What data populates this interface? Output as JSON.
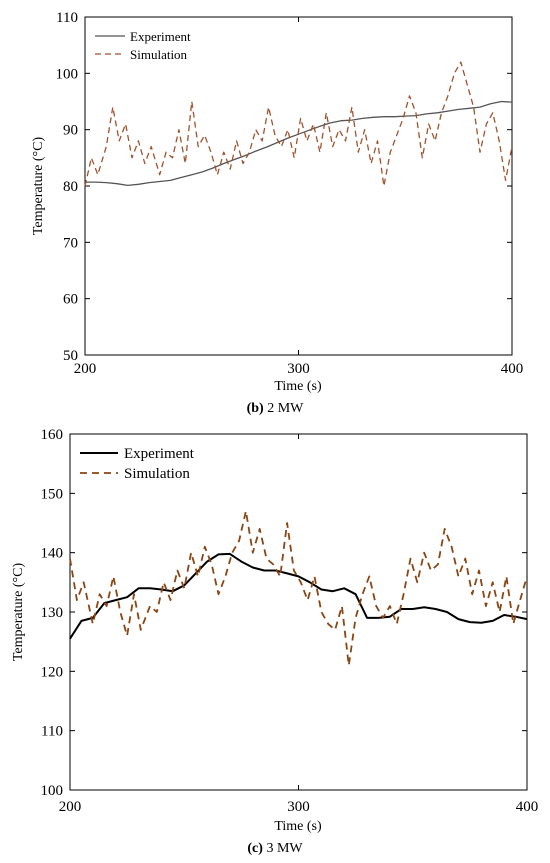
{
  "chart_data": [
    {
      "type": "line",
      "caption_label": "(b)",
      "caption_text": " 2 MW",
      "xlabel": "Time (s)",
      "ylabel": "Temperature (°C)",
      "xlim": [
        200,
        400
      ],
      "ylim": [
        50,
        110
      ],
      "xticks": [
        200,
        300,
        400
      ],
      "yticks": [
        50,
        60,
        70,
        80,
        90,
        100,
        110
      ],
      "legend_position": "top-left",
      "series": [
        {
          "name": "Experiment",
          "color": "#555555",
          "style": "solid",
          "x": [
            200,
            205,
            210,
            215,
            220,
            225,
            230,
            235,
            240,
            245,
            250,
            255,
            260,
            265,
            270,
            275,
            280,
            285,
            290,
            295,
            300,
            305,
            310,
            315,
            320,
            325,
            330,
            335,
            340,
            345,
            350,
            355,
            360,
            365,
            370,
            375,
            380,
            385,
            390,
            395,
            400
          ],
          "y": [
            80.7,
            80.7,
            80.6,
            80.4,
            80.1,
            80.3,
            80.6,
            80.8,
            81.0,
            81.5,
            82.0,
            82.5,
            83.2,
            84.0,
            84.7,
            85.4,
            86.2,
            86.9,
            87.7,
            88.5,
            89.2,
            89.9,
            90.6,
            91.2,
            91.6,
            91.7,
            92.0,
            92.2,
            92.3,
            92.3,
            92.4,
            92.5,
            92.8,
            93.0,
            93.3,
            93.6,
            93.8,
            94.0,
            94.6,
            95.0,
            94.9
          ]
        },
        {
          "name": "Simulation",
          "color": "#a0522d",
          "style": "dashed",
          "x": [
            200,
            203,
            206,
            210,
            213,
            216,
            219,
            222,
            225,
            228,
            231,
            235,
            238,
            241,
            244,
            247,
            250,
            253,
            256,
            259,
            262,
            265,
            268,
            271,
            274,
            277,
            280,
            283,
            286,
            289,
            292,
            295,
            298,
            301,
            304,
            307,
            310,
            313,
            316,
            319,
            322,
            325,
            328,
            331,
            334,
            337,
            340,
            343,
            346,
            349,
            352,
            355,
            358,
            361,
            364,
            367,
            370,
            373,
            376,
            379,
            382,
            385,
            388,
            391,
            394,
            397,
            400
          ],
          "y": [
            80.0,
            85.0,
            82.0,
            87.0,
            94.0,
            88.0,
            91.0,
            85.0,
            88.0,
            84.0,
            87.0,
            82.0,
            86.0,
            85.0,
            90.0,
            84.0,
            95.0,
            87.0,
            89.0,
            86.0,
            82.0,
            86.0,
            83.0,
            88.0,
            84.0,
            86.0,
            90.0,
            88.0,
            94.0,
            89.0,
            87.0,
            90.0,
            85.0,
            92.0,
            88.0,
            91.0,
            86.0,
            93.0,
            87.0,
            90.0,
            88.0,
            94.0,
            86.0,
            90.0,
            84.0,
            88.0,
            80.0,
            86.0,
            89.0,
            92.0,
            96.0,
            93.0,
            85.0,
            91.0,
            88.0,
            93.0,
            96.0,
            100.0,
            102.0,
            98.0,
            94.0,
            86.0,
            91.0,
            93.0,
            88.0,
            81.0,
            87.0
          ]
        }
      ]
    },
    {
      "type": "line",
      "caption_label": "(c)",
      "caption_text": " 3 MW",
      "xlabel": "Time (s)",
      "ylabel": "Temperature (°C)",
      "xlim": [
        200,
        400
      ],
      "ylim": [
        100,
        160
      ],
      "xticks": [
        200,
        300,
        400
      ],
      "yticks": [
        100,
        110,
        120,
        130,
        140,
        150,
        160
      ],
      "legend_position": "top-left",
      "series": [
        {
          "name": "Experiment",
          "color": "#000000",
          "style": "solid",
          "x": [
            200,
            205,
            210,
            215,
            220,
            225,
            230,
            235,
            240,
            245,
            250,
            255,
            260,
            265,
            270,
            275,
            280,
            285,
            290,
            295,
            300,
            305,
            310,
            315,
            320,
            325,
            330,
            335,
            340,
            345,
            350,
            355,
            360,
            365,
            370,
            375,
            380,
            385,
            390,
            395,
            400
          ],
          "y": [
            125.5,
            128.5,
            129.0,
            131.5,
            132.0,
            132.5,
            134.0,
            134.0,
            133.8,
            133.5,
            134.5,
            136.5,
            138.5,
            139.7,
            139.8,
            138.5,
            137.5,
            137.0,
            137.0,
            136.5,
            136.0,
            135.0,
            133.8,
            133.5,
            134.0,
            133.0,
            129.0,
            129.0,
            129.2,
            130.5,
            130.5,
            130.8,
            130.5,
            130.0,
            128.8,
            128.3,
            128.2,
            128.5,
            129.5,
            129.2,
            128.8
          ]
        },
        {
          "name": "Simulation",
          "color": "#8b4513",
          "style": "dashed",
          "x": [
            200,
            203,
            206,
            210,
            213,
            216,
            219,
            222,
            225,
            228,
            231,
            235,
            238,
            241,
            244,
            247,
            250,
            253,
            256,
            259,
            262,
            265,
            268,
            271,
            274,
            277,
            280,
            283,
            286,
            289,
            292,
            295,
            298,
            301,
            304,
            307,
            310,
            313,
            316,
            319,
            322,
            325,
            328,
            331,
            334,
            337,
            340,
            343,
            346,
            349,
            352,
            355,
            358,
            361,
            364,
            367,
            370,
            373,
            376,
            379,
            382,
            385,
            388,
            391,
            394,
            397,
            400
          ],
          "y": [
            139.0,
            132.0,
            135.0,
            128.0,
            133.0,
            131.0,
            136.0,
            130.0,
            126.0,
            133.0,
            127.0,
            131.0,
            130.0,
            135.0,
            132.0,
            137.0,
            134.0,
            140.0,
            136.0,
            141.0,
            138.0,
            133.0,
            136.0,
            140.0,
            142.0,
            147.0,
            140.0,
            144.0,
            139.0,
            138.0,
            136.0,
            145.0,
            137.0,
            135.0,
            132.0,
            136.0,
            130.0,
            128.0,
            127.0,
            131.0,
            121.0,
            129.0,
            133.0,
            136.0,
            131.0,
            129.0,
            131.0,
            128.0,
            133.0,
            139.0,
            135.0,
            140.0,
            137.0,
            138.0,
            144.0,
            141.0,
            136.0,
            139.0,
            133.0,
            137.0,
            131.0,
            135.0,
            130.0,
            136.0,
            128.0,
            132.0,
            136.0
          ]
        }
      ]
    }
  ]
}
